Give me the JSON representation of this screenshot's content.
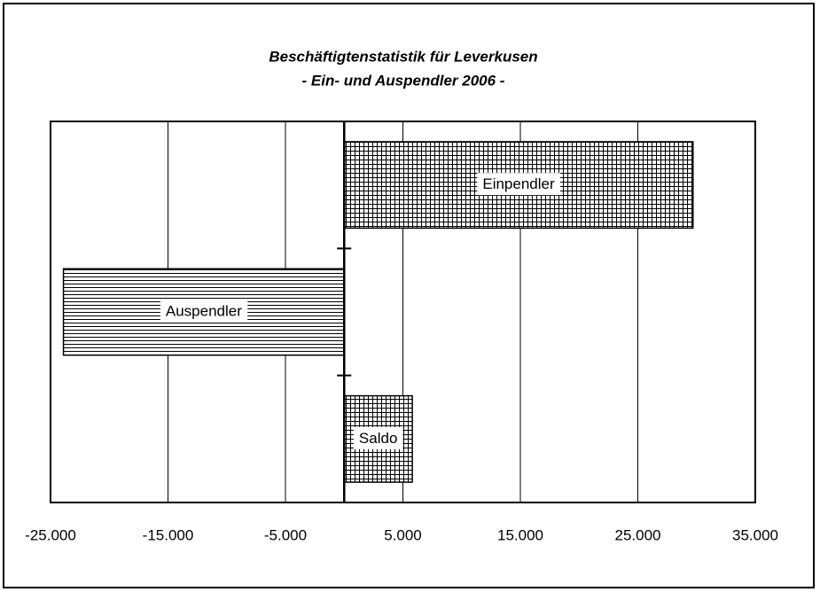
{
  "chart_data": {
    "type": "hbar",
    "title": "Beschäftigtenstatistik für Leverkusen",
    "subtitle": "- Ein- und Auspendler 2006 -",
    "categories": [
      "Einpendler",
      "Auspendler",
      "Saldo"
    ],
    "values": [
      29700,
      -23900,
      5800
    ],
    "color": "#000000",
    "patterns": [
      "grid",
      "horizontal",
      "grid"
    ],
    "xlim": [
      -25000,
      35000
    ],
    "xticks": [
      {
        "value": -25000,
        "label": "-25.000"
      },
      {
        "value": -15000,
        "label": "-15.000"
      },
      {
        "value": -5000,
        "label": "-5.000"
      },
      {
        "value": 5000,
        "label": "5.000"
      },
      {
        "value": 15000,
        "label": "15.000"
      },
      {
        "value": 25000,
        "label": "25.000"
      },
      {
        "value": 35000,
        "label": "35.000"
      }
    ],
    "grid": true
  }
}
